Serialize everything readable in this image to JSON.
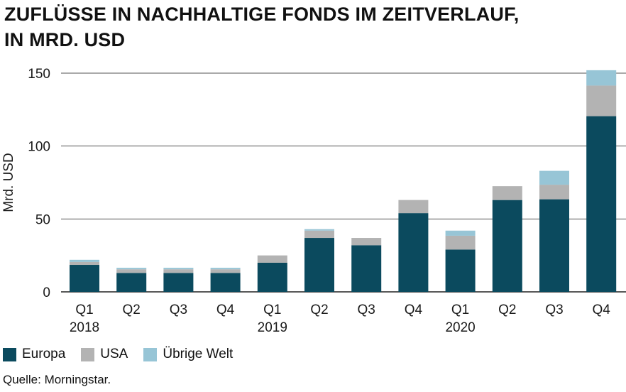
{
  "title": {
    "line1": "ZUFLÜSSE IN NACHHALTIGE FONDS IM ZEITVERLAUF,",
    "line2": "IN MRD. USD"
  },
  "source": "Quelle: Morningstar.",
  "chart_data": {
    "type": "bar",
    "stacked": true,
    "categories": [
      "Q1",
      "Q2",
      "Q3",
      "Q4",
      "Q1",
      "Q2",
      "Q3",
      "Q4",
      "Q1",
      "Q2",
      "Q3",
      "Q4"
    ],
    "years": [
      {
        "label": "2018",
        "index": 0
      },
      {
        "label": "2019",
        "index": 4
      },
      {
        "label": "2020",
        "index": 8
      }
    ],
    "series": [
      {
        "name": "Europa",
        "color": "#0b4a5e",
        "values": [
          18.5,
          13,
          13,
          13,
          20,
          37,
          32,
          54,
          29,
          63,
          63.5,
          120.5
        ]
      },
      {
        "name": "USA",
        "color": "#b3b3b3",
        "values": [
          2,
          2.5,
          2.5,
          2.5,
          5,
          5,
          5,
          9,
          9.5,
          9.5,
          10,
          21
        ]
      },
      {
        "name": "Übrige Welt",
        "color": "#97c5d6",
        "values": [
          1.5,
          1,
          1,
          1,
          0,
          1,
          0,
          0,
          3.5,
          0,
          9.5,
          10.5
        ]
      }
    ],
    "ylabel": "Mrd. USD",
    "ylim": [
      0,
      150
    ],
    "yticks": [
      0,
      50,
      100,
      150
    ],
    "grid": true,
    "legend_position": "bottom-left"
  }
}
